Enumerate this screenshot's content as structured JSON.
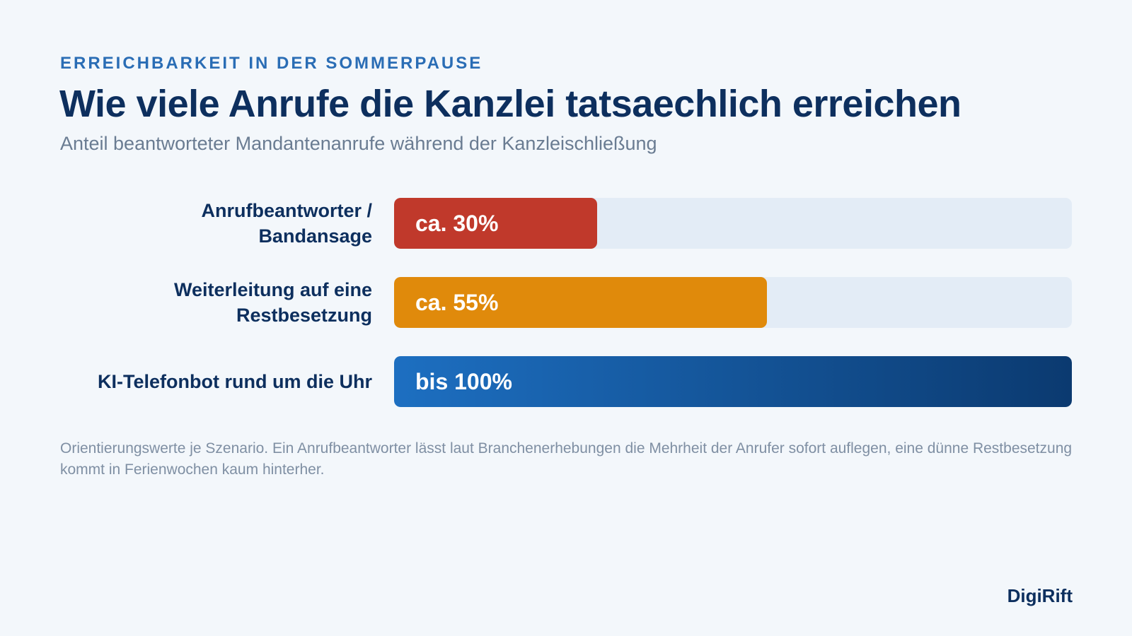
{
  "eyebrow": "ERREICHBARKEIT IN DER SOMMERPAUSE",
  "title": "Wie viele Anrufe die Kanzlei tatsaechlich erreichen",
  "subtitle": "Anteil beantworteter Mandantenanrufe während der Kanzleischließung",
  "footnote": "Orientierungswerte je Szenario. Ein Anrufbeantworter lässt laut Branchenerhebungen die Mehrheit der Anrufer sofort auflegen, eine dünne Restbesetzung kommt in Ferienwochen kaum hinterher.",
  "brand": "DigiRift",
  "chart_data": {
    "type": "bar",
    "orientation": "horizontal",
    "title": "Wie viele Anrufe die Kanzlei tatsaechlich erreichen",
    "subtitle": "Anteil beantworteter Mandantenanrufe während der Kanzleischließung",
    "xlim": [
      0,
      100
    ],
    "grid": false,
    "categories": [
      "Anrufbeantworter / Bandansage",
      "Weiterleitung auf eine Restbesetzung",
      "KI-Telefonbot rund um die Uhr"
    ],
    "values": [
      30,
      55,
      100
    ],
    "value_labels": [
      "ca. 30%",
      "ca. 55%",
      "bis 100%"
    ],
    "colors": [
      "#c0392b",
      "#e08a0b",
      "#1d6fc1"
    ],
    "track_color": "#e3ecf6"
  }
}
